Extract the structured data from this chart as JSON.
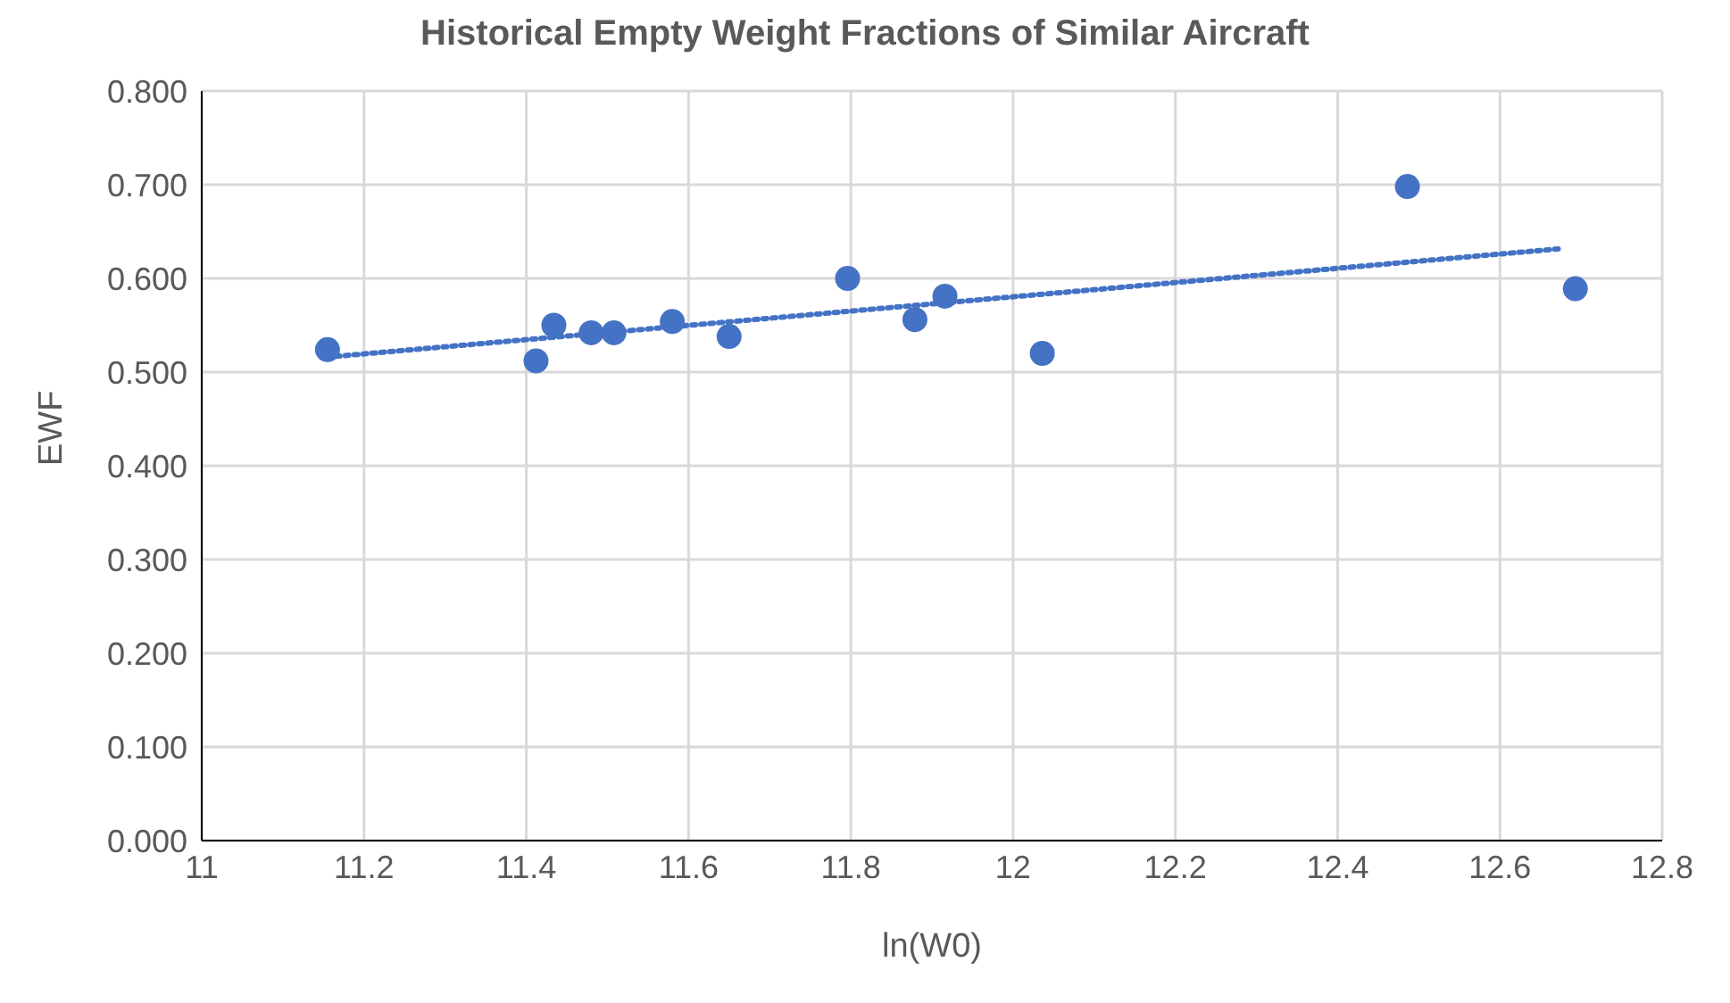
{
  "chart_data": {
    "type": "scatter",
    "title": "Historical Empty Weight Fractions of Similar Aircraft",
    "xlabel": "ln(W0)",
    "ylabel": "EWF",
    "xlim": [
      11,
      12.8
    ],
    "xticks": [
      11,
      11.2,
      11.4,
      11.6,
      11.8,
      12,
      12.2,
      12.4,
      12.6,
      12.8
    ],
    "ylim": [
      0,
      0.8
    ],
    "yticks": [
      {
        "value": 0,
        "label": "0.000"
      },
      {
        "value": 0.1,
        "label": "0.100"
      },
      {
        "value": 0.2,
        "label": "0.200"
      },
      {
        "value": 0.3,
        "label": "0.300"
      },
      {
        "value": 0.4,
        "label": "0.400"
      },
      {
        "value": 0.5,
        "label": "0.500"
      },
      {
        "value": 0.6,
        "label": "0.600"
      },
      {
        "value": 0.7,
        "label": "0.700"
      },
      {
        "value": 0.8,
        "label": "0.800"
      }
    ],
    "grid": true,
    "marker": "circle",
    "series": [
      {
        "color": "#4472c4",
        "x": [
          11.155,
          11.412,
          11.434,
          11.48,
          11.508,
          11.58,
          11.65,
          11.796,
          11.879,
          11.916,
          12.036,
          12.486,
          12.693
        ],
        "values": [
          0.524,
          0.512,
          0.55,
          0.542,
          0.542,
          0.554,
          0.538,
          0.6,
          0.556,
          0.581,
          0.52,
          0.698,
          0.589
        ]
      },
      {
        "type": "line",
        "color": "#4472c4",
        "line_style": "dotted",
        "marker": "none",
        "x": [
          11.155,
          12.678
        ],
        "values": [
          0.516,
          0.632
        ]
      }
    ]
  }
}
